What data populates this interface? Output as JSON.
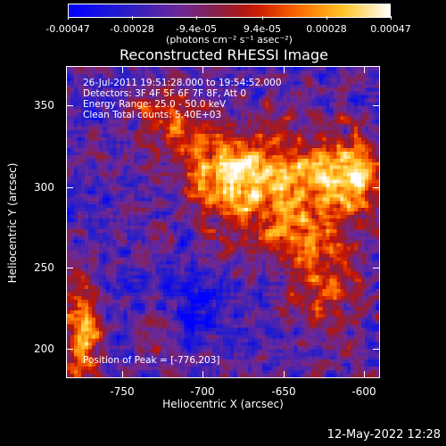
{
  "colorbar": {
    "labels": [
      "-0.00047",
      "-0.00028",
      "-9.4e-05",
      "9.4e-05",
      "0.00028",
      "0.00047"
    ],
    "units": "(photons cm⁻² s⁻¹ asec⁻²)"
  },
  "title": "Reconstructed RHESSI Image",
  "info": {
    "line1": "26-Jul-2011 19:51:28.000 to 19:54:52.000",
    "line2": "Detectors: 3F 4F 5F 6F 7F 8F, Att 0",
    "line3": "Energy Range: 25.0 - 50.0 keV",
    "line4": "Clean    Total counts: 5.40E+03",
    "peak": "Position of Peak = [-776,203]"
  },
  "axes": {
    "xlabel": "Heliocentric X (arcsec)",
    "ylabel": "Heliocentric Y (arcsec)",
    "xticks": [
      "-750",
      "-700",
      "-650",
      "-600"
    ],
    "yticks": [
      "350",
      "300",
      "250",
      "200"
    ],
    "xlim": [
      -778,
      -590
    ],
    "ylim": [
      183,
      375
    ]
  },
  "timestamp": "12-May-2022 12:28"
}
